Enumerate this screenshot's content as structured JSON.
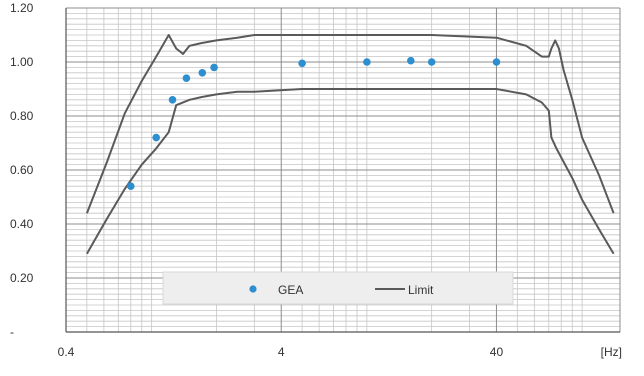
{
  "chart_data": {
    "type": "scatter",
    "xscale": "log",
    "xlim": [
      0.4,
      150
    ],
    "ylim": [
      0,
      1.2
    ],
    "xlabel": "[Hz]",
    "x_ticks": [
      0.4,
      4,
      40
    ],
    "x_tick_labels": [
      "0.4",
      "4",
      "40"
    ],
    "y_ticks": [
      0,
      0.2,
      0.4,
      0.6,
      0.8,
      1.0,
      1.2
    ],
    "y_tick_labels": [
      "-",
      "0.20",
      "0.40",
      "0.60",
      "0.80",
      "1.00",
      "1.20"
    ],
    "grid": true,
    "legend_position": "bottom-center",
    "series": [
      {
        "name": "GEA",
        "kind": "markers",
        "color": "#2e8fd0",
        "x": [
          0.8,
          1.05,
          1.25,
          1.45,
          1.72,
          1.95,
          5.0,
          10.0,
          16.0,
          20.0,
          40.0
        ],
        "y": [
          0.54,
          0.72,
          0.86,
          0.94,
          0.96,
          0.98,
          0.995,
          1.0,
          1.005,
          1.0,
          1.0
        ]
      },
      {
        "name": "Limit",
        "kind": "line",
        "color": "#5a5a5a",
        "x": [
          0.5,
          0.62,
          0.75,
          0.9,
          1.05,
          1.2,
          1.3,
          1.4,
          1.5,
          1.7,
          2.0,
          2.5,
          3,
          5,
          10,
          20,
          40,
          55,
          65,
          70,
          72,
          75,
          78,
          82,
          90,
          100,
          120,
          140
        ],
        "y": [
          0.44,
          0.63,
          0.81,
          0.93,
          1.02,
          1.1,
          1.05,
          1.03,
          1.06,
          1.07,
          1.08,
          1.09,
          1.1,
          1.1,
          1.1,
          1.1,
          1.09,
          1.06,
          1.02,
          1.02,
          1.05,
          1.08,
          1.05,
          0.97,
          0.86,
          0.72,
          0.58,
          0.44
        ]
      },
      {
        "name": "Limit",
        "kind": "line",
        "color": "#5a5a5a",
        "x": [
          0.5,
          0.62,
          0.75,
          0.9,
          1.05,
          1.2,
          1.3,
          1.5,
          1.7,
          2.0,
          2.5,
          3,
          5,
          10,
          20,
          40,
          55,
          65,
          70,
          72,
          76,
          82,
          90,
          100,
          120,
          140
        ],
        "y": [
          0.29,
          0.42,
          0.53,
          0.62,
          0.68,
          0.74,
          0.84,
          0.86,
          0.87,
          0.88,
          0.89,
          0.89,
          0.9,
          0.9,
          0.9,
          0.9,
          0.88,
          0.85,
          0.82,
          0.72,
          0.68,
          0.63,
          0.57,
          0.49,
          0.38,
          0.29
        ]
      }
    ]
  }
}
